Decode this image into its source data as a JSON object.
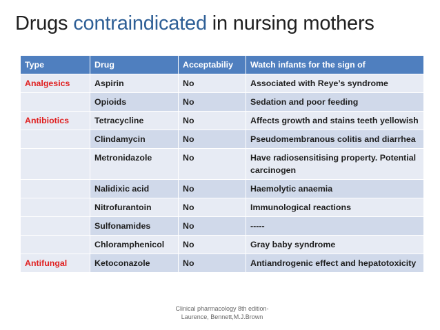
{
  "title": {
    "part1": "Drugs ",
    "accent": "contraindicated",
    "part2": " in nursing mothers"
  },
  "table": {
    "headers": [
      "Type",
      "Drug",
      "Acceptabiliy",
      "Watch infants for the sign of"
    ],
    "rows": [
      {
        "type": "Analgesics",
        "drug": "Aspirin",
        "acceptability": "No",
        "sign": "Associated with Reye’s syndrome"
      },
      {
        "type": "",
        "drug": "Opioids",
        "acceptability": "No",
        "sign": "Sedation and poor feeding"
      },
      {
        "type": "Antibiotics",
        "drug": "Tetracycline",
        "acceptability": "No",
        "sign": "Affects growth and stains teeth yellowish"
      },
      {
        "type": "",
        "drug": "Clindamycin",
        "acceptability": "No",
        "sign": "Pseudomembranous colitis and diarrhea"
      },
      {
        "type": "",
        "drug": "Metronidazole",
        "acceptability": "No",
        "sign": "Have radiosensitising property. Potential carcinogen"
      },
      {
        "type": "",
        "drug": "Nalidixic acid",
        "acceptability": "No",
        "sign": "Haemolytic anaemia"
      },
      {
        "type": "",
        "drug": "Nitrofurantoin",
        "acceptability": "No",
        "sign": "Immunological reactions"
      },
      {
        "type": "",
        "drug": "Sulfonamides",
        "acceptability": "No",
        "sign": "-----"
      },
      {
        "type": "",
        "drug": "Chloramphenicol",
        "acceptability": "No",
        "sign": "Gray baby syndrome"
      },
      {
        "type": "Antifungal",
        "drug": "Ketoconazole",
        "acceptability": "No",
        "sign": "Antiandrogenic effect and hepatotoxicity"
      }
    ]
  },
  "footer": {
    "line1": "Clinical pharmacology 8th edition-",
    "line2": "Laurence, Bennett,M.J.Brown"
  },
  "colors": {
    "accent": "#2e5f96",
    "header_bg": "#4f7fbf",
    "type_text": "#e02020"
  }
}
